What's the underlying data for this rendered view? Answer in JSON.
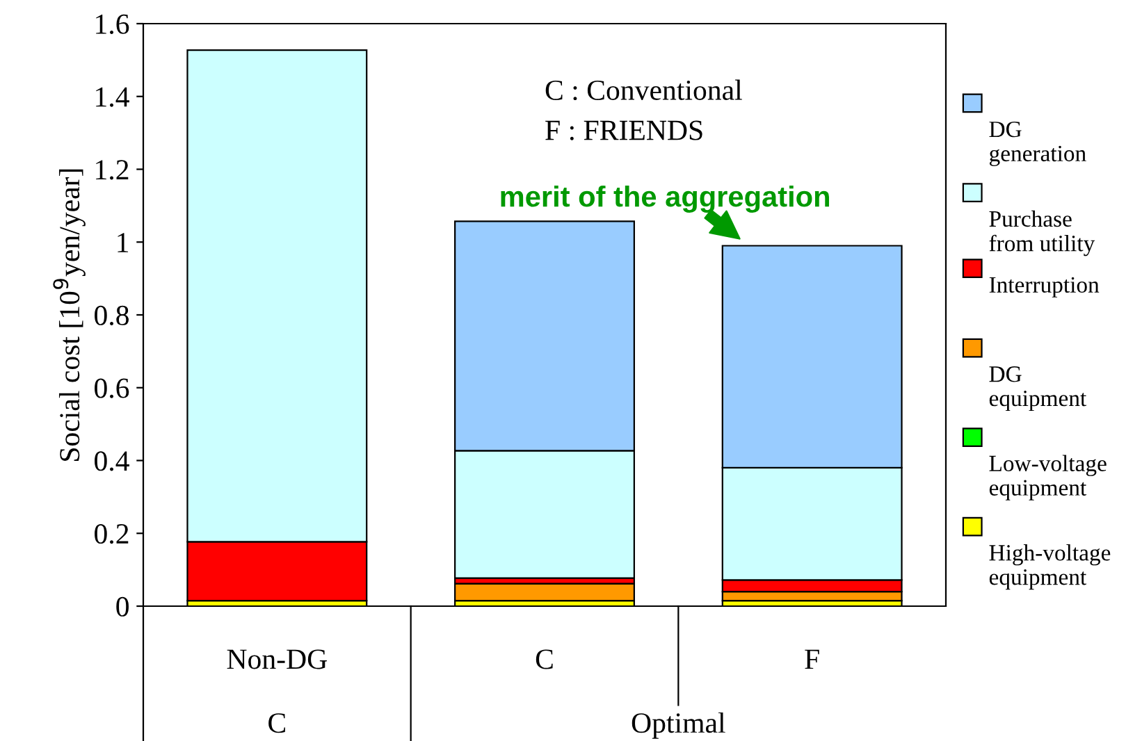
{
  "chart_data": {
    "type": "bar",
    "stacked": true,
    "ylabel": "Social cost [10$^{9}$yen/year]",
    "categories": [
      "Non-DG",
      "C",
      "F"
    ],
    "series": [
      {
        "name": "High-voltage equipment",
        "color": "#ffff00",
        "values": [
          0.015,
          0.015,
          0.015
        ]
      },
      {
        "name": "Low-voltage equipment",
        "color": "#00ff00",
        "values": [
          null,
          null,
          null
        ]
      },
      {
        "name": "DG equipment",
        "color": "#ff9900",
        "values": [
          null,
          0.047,
          0.025
        ]
      },
      {
        "name": "Interruption",
        "color": "#ff0000",
        "values": [
          0.162,
          0.015,
          0.032
        ]
      },
      {
        "name": "Purchase from utility",
        "color": "#ccffff",
        "values": [
          1.35,
          0.35,
          0.308
        ]
      },
      {
        "name": "DG generation",
        "color": "#99ccff",
        "values": [
          null,
          0.63,
          0.61
        ]
      }
    ],
    "ylim": [
      0,
      1.6
    ],
    "yticks": [
      0,
      0.2,
      0.4,
      0.6,
      0.8,
      1,
      1.2,
      1.4,
      1.6
    ],
    "legend": "right",
    "grid": false,
    "annotations": [
      "C : Conventional",
      "F : FRIENDS",
      {
        "text": "merit of the aggregation",
        "x": "F",
        "y": 0.993
      },
      "C",
      "Optimal"
    ]
  }
}
